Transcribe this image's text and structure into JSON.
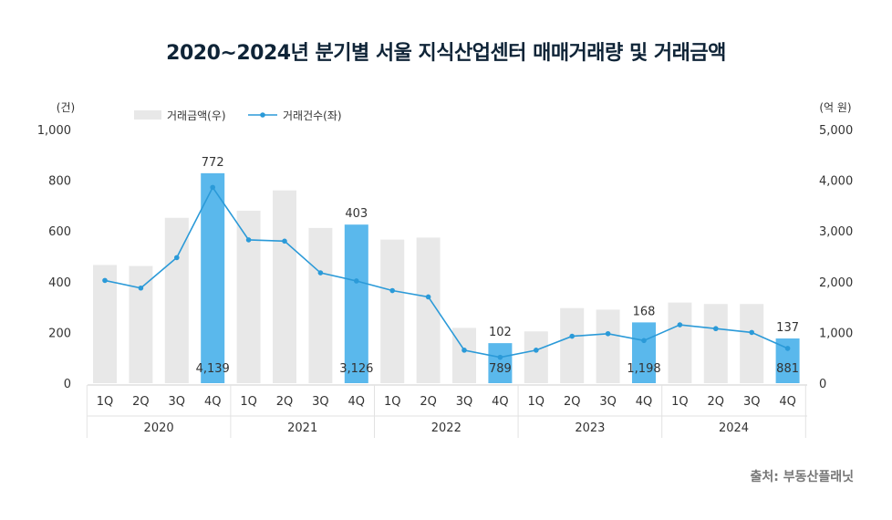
{
  "title": "2020~2024년 분기별 서울 지식산업센터 매매거래량 및 거래금액",
  "source": "출처: 부동산플래닛",
  "colors": {
    "bar_default": "#e8e8e8",
    "bar_highlight": "#5ab8ec",
    "line": "#2b9ad8",
    "axis_text": "#333333"
  },
  "chart_data": {
    "type": "bar",
    "left_axis_unit": "(건)",
    "right_axis_unit": "(억 원)",
    "left_ylim": [
      0,
      1000
    ],
    "right_ylim": [
      0,
      5000
    ],
    "left_ticks": [
      "0",
      "200",
      "400",
      "600",
      "800",
      "1,000"
    ],
    "right_ticks": [
      "0",
      "1,000",
      "2,000",
      "3,000",
      "4,000",
      "5,000"
    ],
    "legend": {
      "position": "top-left",
      "amount_label": "거래금액(우)",
      "count_label": "거래건수(좌)"
    },
    "years": [
      "2020",
      "2021",
      "2022",
      "2023",
      "2024"
    ],
    "categories": [
      "1Q",
      "2Q",
      "3Q",
      "4Q",
      "1Q",
      "2Q",
      "3Q",
      "4Q",
      "1Q",
      "2Q",
      "3Q",
      "4Q",
      "1Q",
      "2Q",
      "3Q",
      "4Q",
      "1Q",
      "2Q",
      "3Q",
      "4Q"
    ],
    "series": [
      {
        "name": "거래금액(우)",
        "axis": "right",
        "values": [
          2330,
          2310,
          3260,
          4139,
          3400,
          3800,
          3060,
          3126,
          2830,
          2870,
          1090,
          789,
          1020,
          1480,
          1450,
          1198,
          1590,
          1560,
          1560,
          881
        ],
        "highlight": [
          3,
          7,
          11,
          15,
          19
        ]
      },
      {
        "name": "거래건수(좌)",
        "axis": "left",
        "values": [
          405,
          375,
          495,
          772,
          565,
          560,
          435,
          403,
          365,
          340,
          130,
          102,
          130,
          185,
          195,
          168,
          230,
          215,
          200,
          137
        ]
      }
    ],
    "annotations": [
      {
        "index": 3,
        "count_label": "772",
        "amount_label": "4,139"
      },
      {
        "index": 7,
        "count_label": "403",
        "amount_label": "3,126"
      },
      {
        "index": 11,
        "count_label": "102",
        "amount_label": "789"
      },
      {
        "index": 15,
        "count_label": "168",
        "amount_label": "1,198"
      },
      {
        "index": 19,
        "count_label": "137",
        "amount_label": "881"
      }
    ],
    "grid": false
  }
}
